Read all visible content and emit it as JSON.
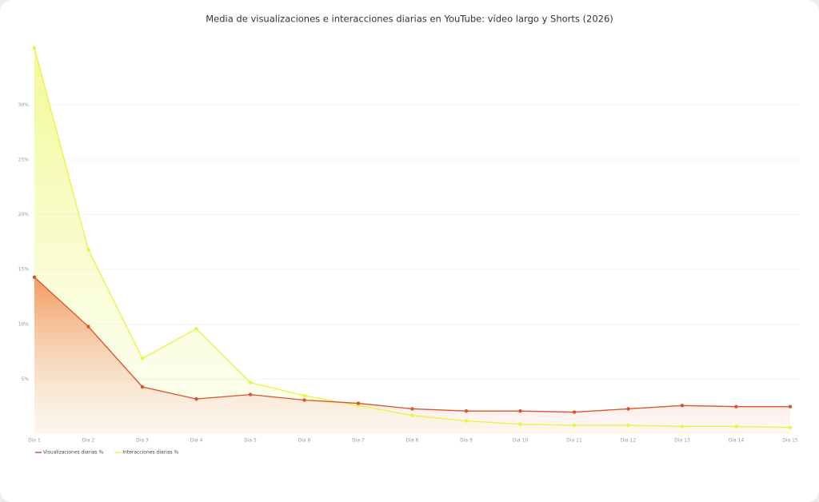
{
  "chart_data": {
    "type": "area-line",
    "title": "Media de visualizaciones e interacciones diarias en YouTube: vídeo largo y Shorts (2026)",
    "categories": [
      "Dia 1",
      "Dia 2",
      "Dia 3",
      "Dia 4",
      "Dia 5",
      "Dia 6",
      "Dia 7",
      "Dia 8",
      "Dia 9",
      "Dia 10",
      "Dia 11",
      "Dia 12",
      "Dia 13",
      "Dia 14",
      "Dia 15"
    ],
    "series": [
      {
        "name": "Visualizaciones diarias %",
        "color": "#d9532c",
        "values": [
          14.3,
          9.8,
          4.3,
          3.2,
          3.6,
          3.1,
          2.8,
          2.3,
          2.1,
          2.1,
          2.0,
          2.3,
          2.6,
          2.5,
          2.5
        ]
      },
      {
        "name": "Interacciones diarias %",
        "color": "#e8f53a",
        "values": [
          35.2,
          16.8,
          6.9,
          9.6,
          4.7,
          3.5,
          2.6,
          1.7,
          1.2,
          0.9,
          0.8,
          0.8,
          0.7,
          0.7,
          0.6
        ]
      }
    ],
    "ylim": [
      0,
      36
    ],
    "yticks": [
      {
        "value": 5,
        "label": "5%"
      },
      {
        "value": 10,
        "label": "10%"
      },
      {
        "value": 15,
        "label": "15%"
      },
      {
        "value": 20,
        "label": "20%"
      },
      {
        "value": 25,
        "label": "25%"
      },
      {
        "value": 30,
        "label": "30%"
      }
    ],
    "grid": true
  }
}
